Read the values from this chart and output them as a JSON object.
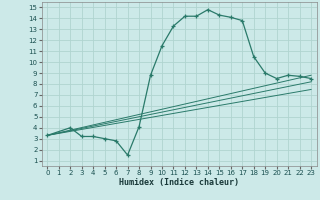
{
  "xlabel": "Humidex (Indice chaleur)",
  "bg_color": "#cce9e8",
  "grid_color": "#b0d4d0",
  "line_color": "#2a7a6a",
  "xlim": [
    -0.5,
    23.5
  ],
  "ylim": [
    0.5,
    15.5
  ],
  "xticks": [
    0,
    1,
    2,
    3,
    4,
    5,
    6,
    7,
    8,
    9,
    10,
    11,
    12,
    13,
    14,
    15,
    16,
    17,
    18,
    19,
    20,
    21,
    22,
    23
  ],
  "yticks": [
    1,
    2,
    3,
    4,
    5,
    6,
    7,
    8,
    9,
    10,
    11,
    12,
    13,
    14,
    15
  ],
  "curve1_x": [
    0,
    2,
    3,
    4,
    5,
    6,
    7,
    8,
    9,
    10,
    11,
    12,
    13,
    14,
    15,
    16,
    17,
    18,
    19,
    20,
    21,
    22,
    23
  ],
  "curve1_y": [
    3.3,
    4.0,
    3.2,
    3.2,
    3.0,
    2.8,
    1.5,
    4.1,
    8.8,
    11.5,
    13.3,
    14.2,
    14.2,
    14.8,
    14.3,
    14.1,
    13.8,
    10.5,
    9.0,
    8.5,
    8.8,
    8.7,
    8.5
  ],
  "line1_x": [
    0,
    23
  ],
  "line1_y": [
    3.3,
    7.5
  ],
  "line2_x": [
    0,
    23
  ],
  "line2_y": [
    3.3,
    8.2
  ],
  "line3_x": [
    0,
    23
  ],
  "line3_y": [
    3.3,
    8.8
  ]
}
